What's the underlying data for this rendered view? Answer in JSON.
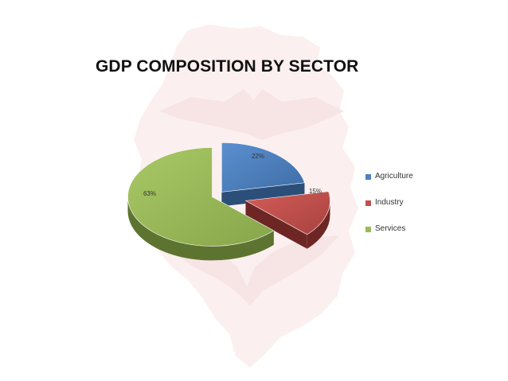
{
  "chart_data": {
    "type": "pie",
    "title": "GDP COMPOSITION BY SECTOR",
    "categories": [
      "Agriculture",
      "Industry",
      "Services"
    ],
    "values": [
      22,
      15,
      63
    ],
    "value_labels": [
      "22%",
      "15%",
      "63%"
    ],
    "exploded": true,
    "three_d": true,
    "legend_position": "right"
  },
  "colors": {
    "agriculture": "#4f81bd",
    "industry": "#c0504d",
    "services": "#9bbb59",
    "background_map": "#fbeeee"
  },
  "icons": [
    "eagle-map-watermark"
  ]
}
